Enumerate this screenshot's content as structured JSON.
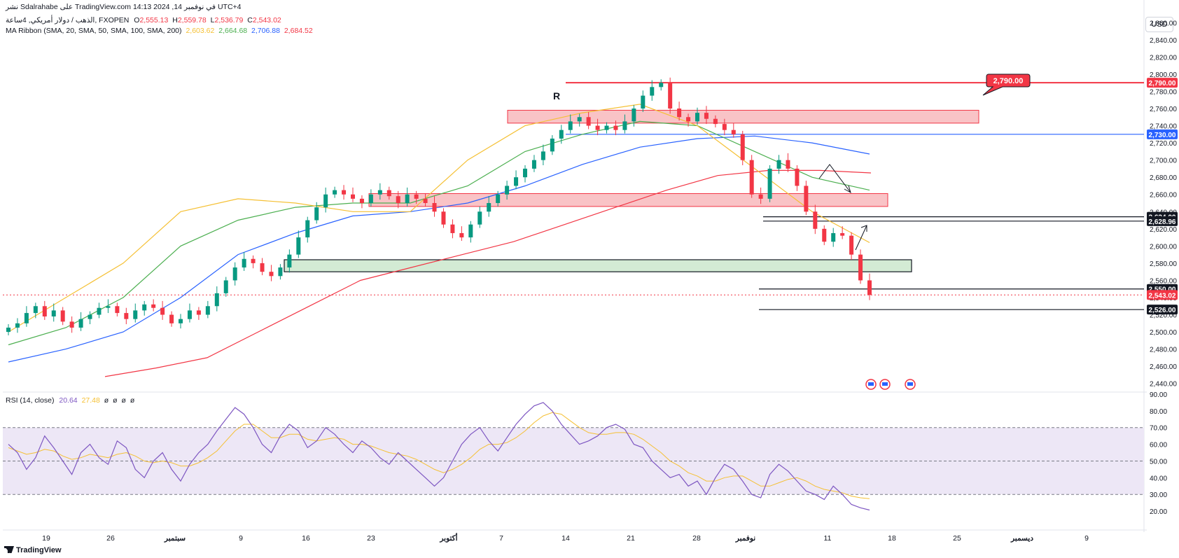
{
  "header": {
    "title_line": "نشر Sdalrahabe على TradingView.com في نوفمبر 14, 2024 14:13 UTC+4",
    "symbol": "الذهب / دولار أمريكي, 4ساعة, FXOPEN",
    "ohlc": {
      "o_label": "O",
      "o": "2,555.13",
      "h_label": "H",
      "h": "2,559.78",
      "l_label": "L",
      "l": "2,536.79",
      "c_label": "C",
      "c": "2,543.02"
    },
    "ma_ribbon_label": "MA Ribbon (SMA, 20, SMA, 50, SMA, 100, SMA, 200)",
    "ma_values": [
      "2,603.62",
      "2,664.68",
      "2,706.88",
      "2,684.52"
    ],
    "rsi_label": "RSI (14, close)",
    "rsi_values": [
      "20.64",
      "27.48",
      "ø",
      "ø",
      "ø",
      "ø"
    ]
  },
  "currency_button": "USD",
  "branding": "TradingView",
  "colors": {
    "bull": "#089981",
    "bear": "#f23645",
    "ma20": "#f5c034",
    "ma50": "#4caf50",
    "ma100": "#2962ff",
    "ma200": "#f23645",
    "rsi_line": "#7e57c2",
    "rsi_ma": "#f5c034",
    "rsi_band": "#ede7f6",
    "supply_zone": "#f8b4b8",
    "demand_zone": "#c8e6c9"
  },
  "chart_data": [
    {
      "type": "candlestick",
      "price_scale": {
        "min": 2430,
        "max": 2870,
        "ticks": [
          2440,
          2460,
          2480,
          2500,
          2520,
          2540,
          2560,
          2580,
          2600,
          2620,
          2640,
          2660,
          2680,
          2700,
          2720,
          2740,
          2760,
          2780,
          2800,
          2820,
          2840,
          2860
        ]
      },
      "x_labels": [
        "19",
        "26",
        "سبتمبر",
        "9",
        "16",
        "23",
        "أكتوبر",
        "7",
        "14",
        "21",
        "28",
        "نوفمبر",
        "11",
        "18",
        "25",
        "ديسمبر",
        "9"
      ],
      "close_path": [
        2505,
        2510,
        2522,
        2530,
        2518,
        2525,
        2512,
        2505,
        2515,
        2520,
        2528,
        2530,
        2522,
        2515,
        2525,
        2532,
        2528,
        2520,
        2510,
        2515,
        2525,
        2520,
        2530,
        2545,
        2560,
        2575,
        2585,
        2580,
        2570,
        2565,
        2575,
        2590,
        2610,
        2630,
        2645,
        2660,
        2665,
        2660,
        2655,
        2650,
        2660,
        2665,
        2658,
        2650,
        2660,
        2655,
        2650,
        2640,
        2625,
        2615,
        2610,
        2625,
        2640,
        2650,
        2660,
        2670,
        2680,
        2690,
        2700,
        2710,
        2725,
        2735,
        2745,
        2750,
        2740,
        2735,
        2740,
        2735,
        2745,
        2760,
        2775,
        2785,
        2790,
        2760,
        2750,
        2745,
        2755,
        2748,
        2742,
        2735,
        2730,
        2700,
        2660,
        2655,
        2690,
        2700,
        2690,
        2670,
        2640,
        2620,
        2605,
        2615,
        2612,
        2590,
        2560,
        2543
      ],
      "ma_ribbon": {
        "sma20": [
          2500,
          2540,
          2580,
          2640,
          2655,
          2650,
          2640,
          2640,
          2700,
          2740,
          2755,
          2765,
          2740,
          2690,
          2640,
          2604
        ],
        "sma50": [
          2485,
          2505,
          2540,
          2600,
          2630,
          2645,
          2650,
          2650,
          2670,
          2710,
          2730,
          2745,
          2740,
          2710,
          2680,
          2665
        ],
        "sma100": [
          2465,
          2480,
          2500,
          2540,
          2590,
          2615,
          2635,
          2640,
          2650,
          2670,
          2695,
          2715,
          2725,
          2728,
          2720,
          2707
        ],
        "sma200": [
          2448,
          2458,
          2470,
          2500,
          2530,
          2560,
          2575,
          2590,
          2605,
          2625,
          2645,
          2665,
          2682,
          2688,
          2688,
          2685
        ]
      },
      "horizontal_levels": [
        {
          "label": "2,790.00",
          "value": 2790,
          "color": "#f23645"
        },
        {
          "label": "2,730.00",
          "value": 2730,
          "color": "#2962ff"
        },
        {
          "label": "2,634.00",
          "value": 2634,
          "color": "#131722"
        },
        {
          "label": "2,628.96",
          "value": 2628.96,
          "color": "#131722"
        },
        {
          "label": "2,550.00",
          "value": 2550,
          "color": "#131722"
        },
        {
          "label": "2,543.02",
          "value": 2543.02,
          "color": "#f23645"
        },
        {
          "label": "2,526.00",
          "value": 2526,
          "color": "#131722"
        }
      ],
      "zones": [
        {
          "kind": "supply",
          "from": 2743,
          "to": 2758
        },
        {
          "kind": "supply",
          "from": 2646,
          "to": 2661
        },
        {
          "kind": "demand",
          "from": 2570,
          "to": 2584
        }
      ],
      "annotations": {
        "resistance_letter": "R",
        "callout": "2,790.00"
      }
    },
    {
      "type": "line",
      "name": "RSI (14, close)",
      "y_range": [
        15,
        90
      ],
      "ticks": [
        20,
        30,
        40,
        50,
        60,
        70,
        80,
        90
      ],
      "band": [
        30,
        70
      ],
      "rsi": [
        60,
        55,
        45,
        52,
        65,
        58,
        50,
        42,
        55,
        60,
        52,
        48,
        62,
        58,
        45,
        40,
        50,
        55,
        45,
        38,
        48,
        55,
        60,
        68,
        75,
        82,
        78,
        70,
        60,
        55,
        65,
        72,
        68,
        58,
        62,
        70,
        66,
        60,
        55,
        62,
        58,
        52,
        48,
        55,
        50,
        45,
        40,
        35,
        40,
        50,
        60,
        66,
        70,
        62,
        56,
        64,
        72,
        78,
        83,
        85,
        80,
        72,
        66,
        60,
        62,
        65,
        70,
        72,
        69,
        60,
        58,
        50,
        45,
        40,
        42,
        35,
        38,
        30,
        40,
        48,
        45,
        38,
        30,
        28,
        42,
        48,
        44,
        38,
        32,
        30,
        27,
        35,
        30,
        24,
        22,
        20.64
      ],
      "rsi_ma": [
        58,
        56,
        54,
        55,
        57,
        56,
        53,
        51,
        52,
        54,
        53,
        52,
        54,
        55,
        53,
        50,
        49,
        50,
        49,
        47,
        47,
        49,
        52,
        56,
        62,
        68,
        72,
        72,
        68,
        64,
        64,
        66,
        66,
        63,
        62,
        63,
        64,
        63,
        60,
        60,
        59,
        57,
        55,
        54,
        53,
        51,
        48,
        45,
        43,
        45,
        48,
        52,
        57,
        60,
        60,
        61,
        64,
        68,
        73,
        77,
        79,
        78,
        74,
        70,
        67,
        66,
        66,
        67,
        67,
        66,
        63,
        59,
        55,
        50,
        47,
        43,
        41,
        38,
        38,
        40,
        41,
        41,
        38,
        35,
        35,
        37,
        39,
        40,
        38,
        35,
        33,
        32,
        31,
        29,
        28,
        27.48
      ]
    }
  ]
}
